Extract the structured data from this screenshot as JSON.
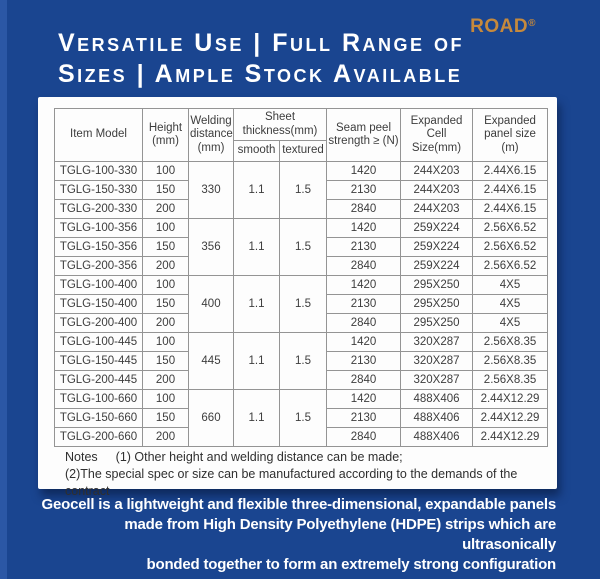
{
  "brand": {
    "name": "ROAD",
    "registered": "®",
    "color": "#c6893c"
  },
  "title": {
    "line1": "Versatile Use | Full Range of",
    "line2": "Sizes | Ample Stock Available"
  },
  "table": {
    "headers": {
      "item_model": "Item Model",
      "height": "Height\n(mm)",
      "welding_distance": "Welding\ndistance\n(mm)",
      "sheet_thickness": "Sheet\nthickness(mm)",
      "smooth": "smooth",
      "textured": "textured",
      "seam_peel": "Seam peel\nstrength ≥ (N)",
      "cell_size": "Expanded Cell\nSize(mm)",
      "panel_size": "Expanded\npanel size (m)"
    },
    "groups": [
      {
        "welding_distance": "330",
        "smooth": "1.1",
        "textured": "1.5",
        "rows": [
          {
            "model": "TGLG-100-330",
            "height": "100",
            "seam": "1420",
            "cell": "244X203",
            "panel": "2.44X6.15"
          },
          {
            "model": "TGLG-150-330",
            "height": "150",
            "seam": "2130",
            "cell": "244X203",
            "panel": "2.44X6.15"
          },
          {
            "model": "TGLG-200-330",
            "height": "200",
            "seam": "2840",
            "cell": "244X203",
            "panel": "2.44X6.15"
          }
        ]
      },
      {
        "welding_distance": "356",
        "smooth": "1.1",
        "textured": "1.5",
        "rows": [
          {
            "model": "TGLG-100-356",
            "height": "100",
            "seam": "1420",
            "cell": "259X224",
            "panel": "2.56X6.52"
          },
          {
            "model": "TGLG-150-356",
            "height": "150",
            "seam": "2130",
            "cell": "259X224",
            "panel": "2.56X6.52"
          },
          {
            "model": "TGLG-200-356",
            "height": "200",
            "seam": "2840",
            "cell": "259X224",
            "panel": "2.56X6.52"
          }
        ]
      },
      {
        "welding_distance": "400",
        "smooth": "1.1",
        "textured": "1.5",
        "rows": [
          {
            "model": "TGLG-100-400",
            "height": "100",
            "seam": "1420",
            "cell": "295X250",
            "panel": "4X5"
          },
          {
            "model": "TGLG-150-400",
            "height": "150",
            "seam": "2130",
            "cell": "295X250",
            "panel": "4X5"
          },
          {
            "model": "TGLG-200-400",
            "height": "200",
            "seam": "2840",
            "cell": "295X250",
            "panel": "4X5"
          }
        ]
      },
      {
        "welding_distance": "445",
        "smooth": "1.1",
        "textured": "1.5",
        "rows": [
          {
            "model": "TGLG-100-445",
            "height": "100",
            "seam": "1420",
            "cell": "320X287",
            "panel": "2.56X8.35"
          },
          {
            "model": "TGLG-150-445",
            "height": "150",
            "seam": "2130",
            "cell": "320X287",
            "panel": "2.56X8.35"
          },
          {
            "model": "TGLG-200-445",
            "height": "200",
            "seam": "2840",
            "cell": "320X287",
            "panel": "2.56X8.35"
          }
        ]
      },
      {
        "welding_distance": "660",
        "smooth": "1.1",
        "textured": "1.5",
        "rows": [
          {
            "model": "TGLG-100-660",
            "height": "100",
            "seam": "1420",
            "cell": "488X406",
            "panel": "2.44X12.29"
          },
          {
            "model": "TGLG-150-660",
            "height": "150",
            "seam": "2130",
            "cell": "488X406",
            "panel": "2.44X12.29"
          },
          {
            "model": "TGLG-200-660",
            "height": "200",
            "seam": "2840",
            "cell": "488X406",
            "panel": "2.44X12.29"
          }
        ]
      }
    ]
  },
  "notes": {
    "label": "Notes",
    "line1": "(1) Other height and welding distance can be made;",
    "line2": "(2)The special spec or size can be manufactured according to the demands of the contract"
  },
  "caption": {
    "line1": "Geocell is a lightweight and flexible three-dimensional, expandable panels",
    "line2": "made from High Density Polyethylene (HDPE) strips which are ultrasonically",
    "line3": "bonded together to form an extremely strong configuration"
  },
  "colors": {
    "background": "#1a4590",
    "left_stripe": "#2b57a5",
    "accent_orange": "#c6893c",
    "panel": "#ffffff"
  }
}
